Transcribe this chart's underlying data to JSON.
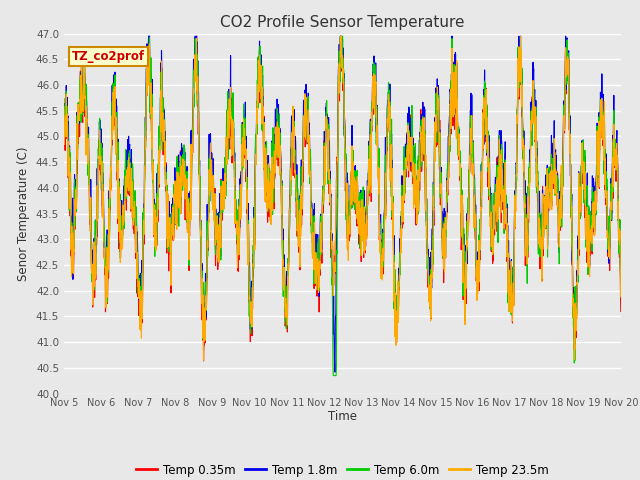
{
  "title": "CO2 Profile Sensor Temperature",
  "ylabel": "Senor Temperature (C)",
  "xlabel": "Time",
  "ylim": [
    40.0,
    47.0
  ],
  "yticks": [
    40.0,
    40.5,
    41.0,
    41.5,
    42.0,
    42.5,
    43.0,
    43.5,
    44.0,
    44.5,
    45.0,
    45.5,
    46.0,
    46.5,
    47.0
  ],
  "legend_labels": [
    "Temp 0.35m",
    "Temp 1.8m",
    "Temp 6.0m",
    "Temp 23.5m"
  ],
  "legend_colors": [
    "#ff0000",
    "#0000ee",
    "#00cc00",
    "#ffaa00"
  ],
  "annotation_text": "TZ_co2prof",
  "annotation_bg": "#ffffcc",
  "annotation_border": "#cc8800",
  "annotation_text_color": "#cc0000",
  "fig_bg_color": "#e8e8e8",
  "plot_bg_color": "#e8e8e8",
  "grid_color": "#ffffff",
  "n_points": 2000,
  "random_seed": 7
}
